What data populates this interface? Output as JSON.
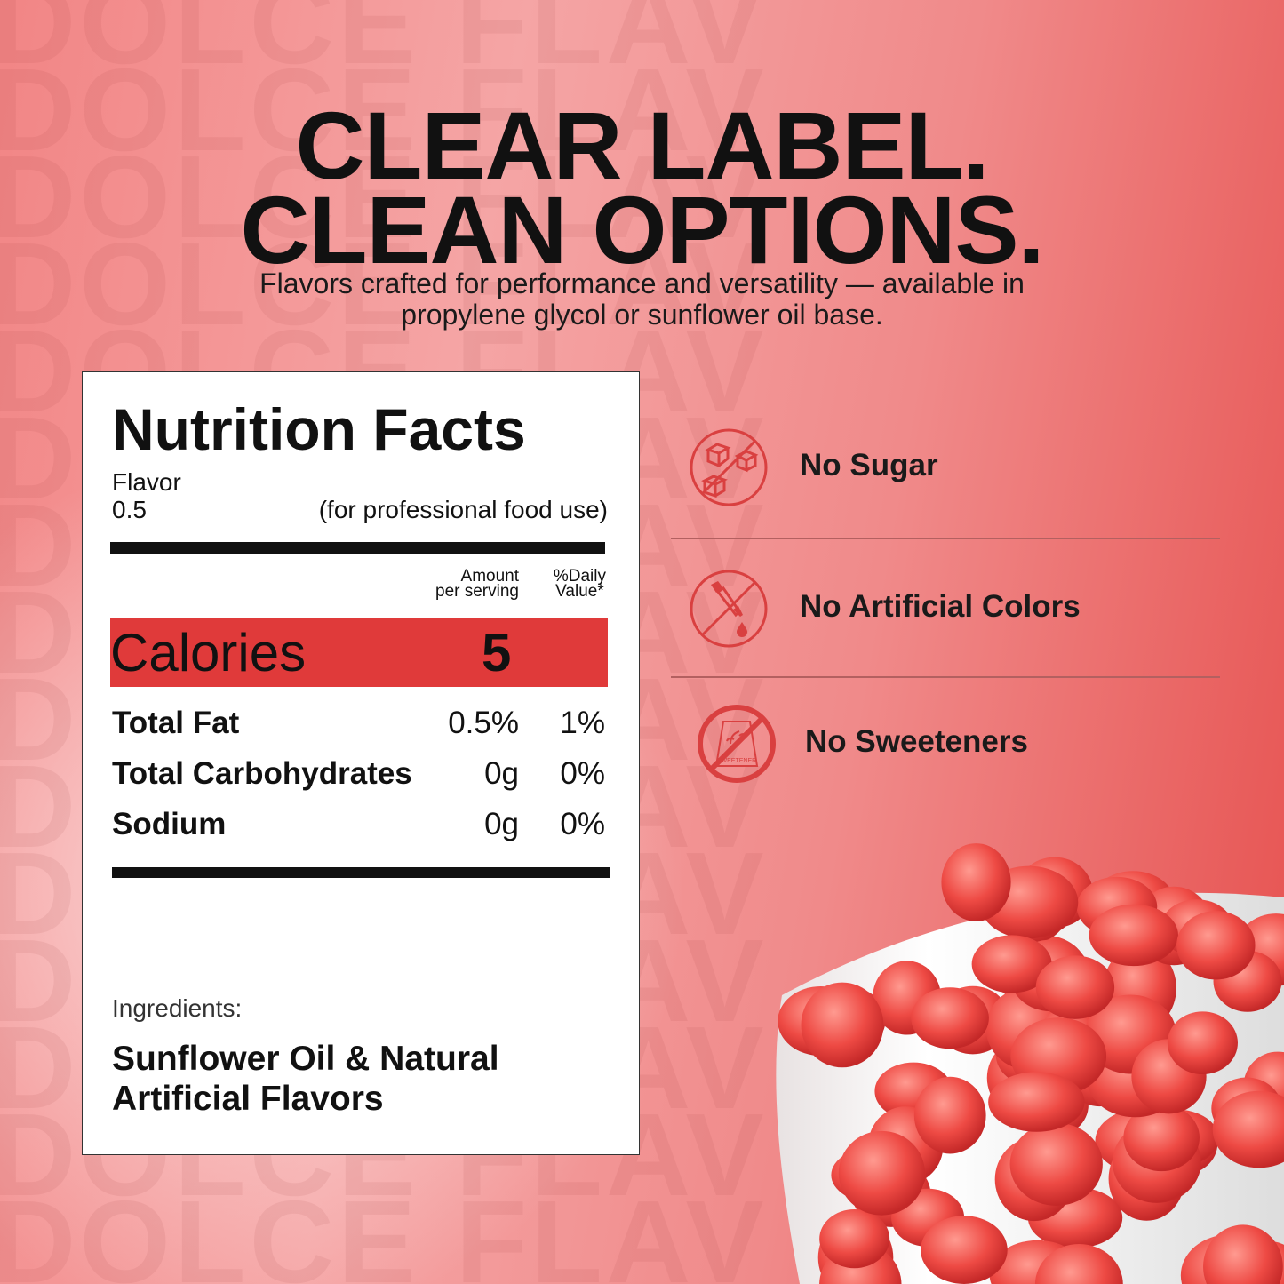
{
  "watermark": "DOLCE FLAV",
  "headline": {
    "line1": "CLEAR LABEL.",
    "line2": "CLEAN OPTIONS."
  },
  "subtitle": {
    "line1": "Flavors crafted for performance and versatility — available in",
    "line2": "propylene glycol or sunflower oil base."
  },
  "nutrition": {
    "title": "Nutrition Facts",
    "product": "Flavor",
    "serving": "0.5",
    "note": "(for professional food use)",
    "col_amount": {
      "line1": "Amount",
      "line2": "per serving"
    },
    "col_daily": {
      "line1": "%Daily",
      "line2": "Value*"
    },
    "calories_label": "Calories",
    "calories_value": "5",
    "rows": [
      {
        "label": "Total Fat",
        "amount": "0.5%",
        "daily": "1%"
      },
      {
        "label": "Total Carbohydrates",
        "amount": "0g",
        "daily": "0%"
      },
      {
        "label": "Sodium",
        "amount": "0g",
        "daily": "0%"
      }
    ],
    "ingredients_label": "Ingredients:",
    "ingredients": {
      "line1": "Sunflower Oil & Natural",
      "line2": "Artificial Flavors"
    }
  },
  "claims": [
    {
      "label": "No Sugar",
      "icon": "no-sugar-cubes-icon"
    },
    {
      "label": "No Artificial Colors",
      "icon": "no-dropper-icon"
    },
    {
      "label": "No Sweeteners",
      "icon": "no-sweetener-bag-icon",
      "bag_text": "SWEETENER"
    }
  ],
  "colors": {
    "accent": "#e03a3a",
    "icon": "#d94040"
  }
}
